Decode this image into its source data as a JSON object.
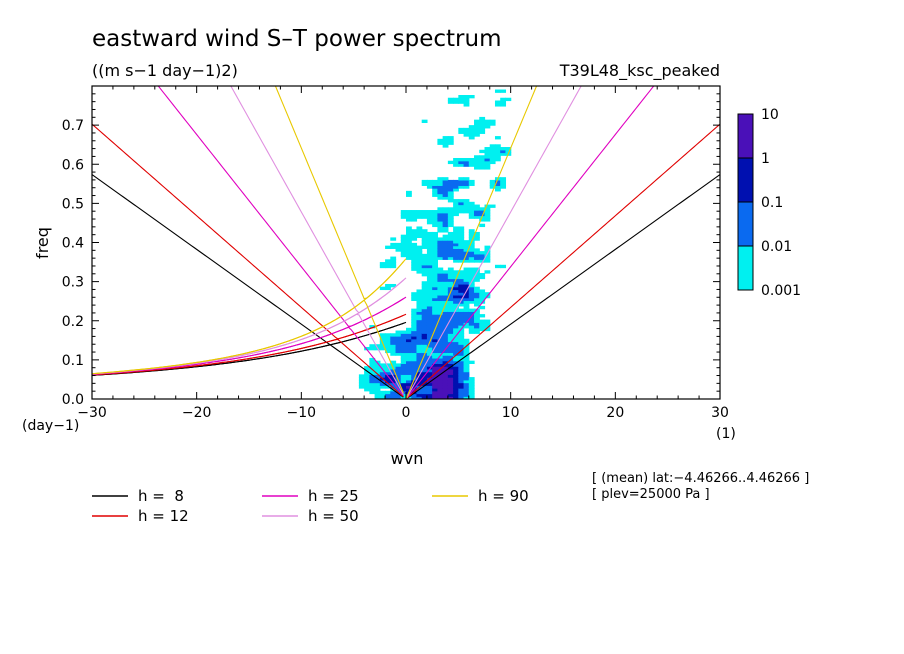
{
  "chart_data": {
    "type": "heatmap",
    "title": "eastward wind S–T power spectrum",
    "subtitle": "((m s−1 day−1)2)",
    "run_label": "T39L48_ksc_peaked",
    "xlabel": "wvn",
    "ylabel": "freq",
    "x_unit_label": "(1)",
    "y_unit_label": "(day−1)",
    "xlim": [
      -30,
      30
    ],
    "ylim": [
      0,
      0.8
    ],
    "x_ticks": [
      -30,
      -20,
      -10,
      0,
      10,
      20,
      30
    ],
    "x_tick_labels": [
      "−30",
      "−20",
      "−10",
      "0",
      "10",
      "20",
      "30"
    ],
    "y_ticks": [
      0,
      0.1,
      0.2,
      0.3,
      0.4,
      0.5,
      0.6,
      0.7
    ],
    "y_tick_labels": [
      "0.0",
      "0.1",
      "0.2",
      "0.3",
      "0.4",
      "0.5",
      "0.6",
      "0.7"
    ],
    "colorbar": {
      "levels": [
        0.001,
        0.01,
        0.1,
        1,
        10
      ],
      "labels": [
        "0.001",
        "0.01",
        "0.1",
        "1",
        "10"
      ],
      "colors": [
        "#00f0f0",
        "#0a6af0",
        "#0010b0",
        "#4a10b8"
      ]
    },
    "dispersion_curves": [
      {
        "name": "h =  8",
        "h": 8,
        "color": "#000000"
      },
      {
        "name": "h = 12",
        "h": 12,
        "color": "#e00000"
      },
      {
        "name": "h = 25",
        "h": 25,
        "color": "#e000c0"
      },
      {
        "name": "h = 50",
        "h": 50,
        "color": "#e090e0"
      },
      {
        "name": "h = 90",
        "h": 90,
        "color": "#e8c800"
      }
    ],
    "annotations": [
      "[ (mean) lat:−4.46266..4.46266 ]",
      "[ plev=25000 Pa ]"
    ]
  }
}
